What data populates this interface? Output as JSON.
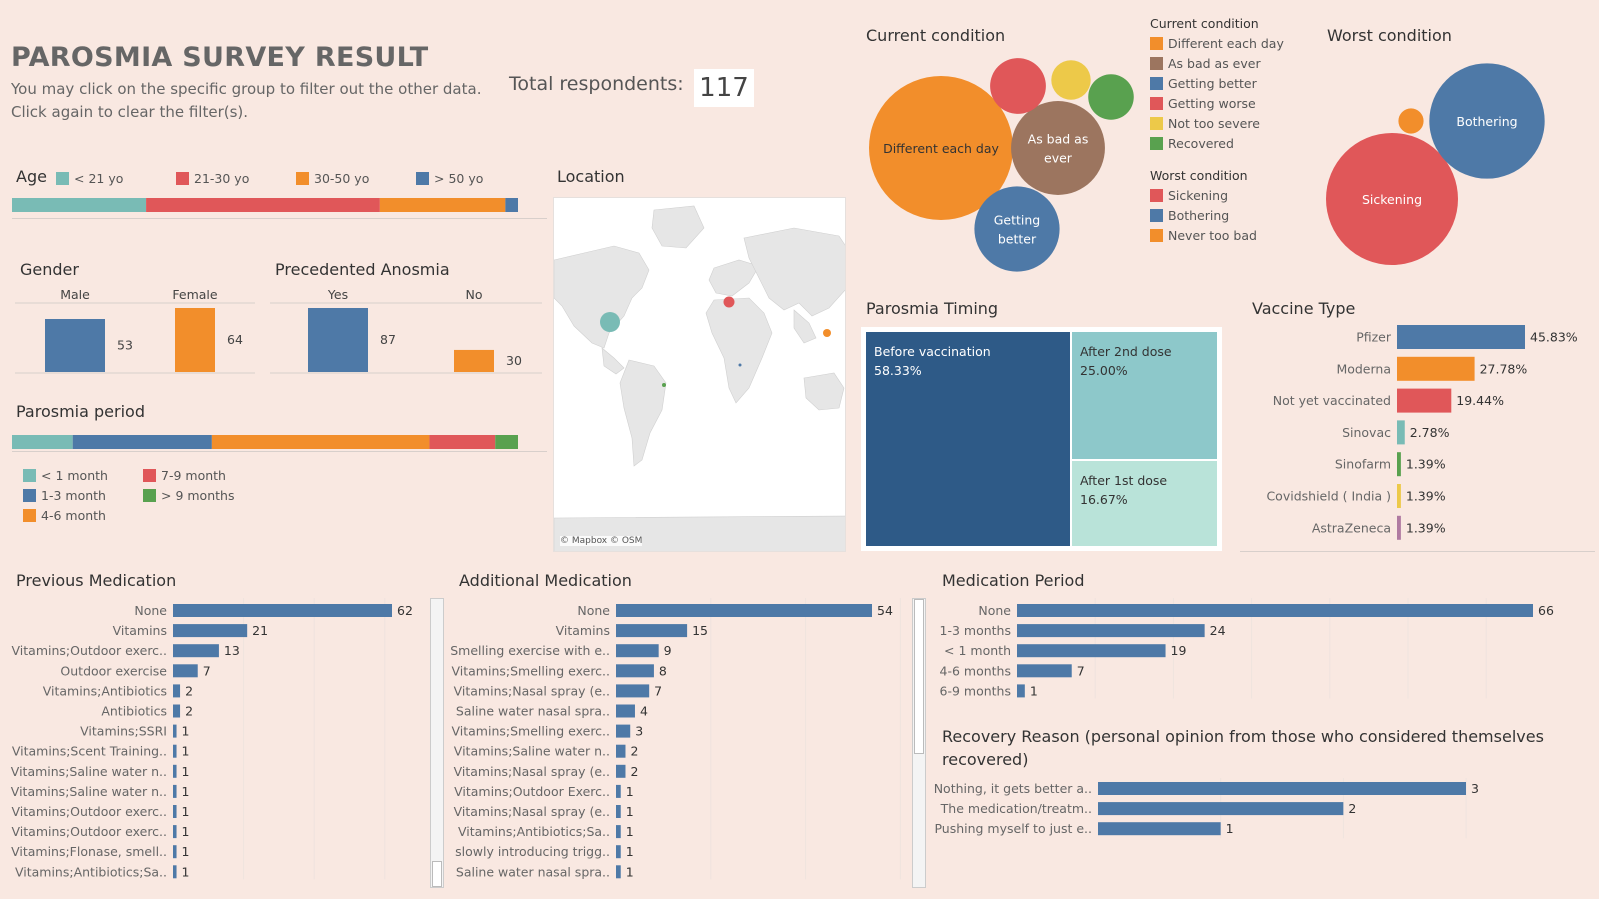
{
  "header": {
    "title": "PAROSMIA SURVEY RESULT",
    "subtitle1": "You may click on the specific group to filter out the other data.",
    "subtitle2": "Click again to clear the filter(s).",
    "total_label": "Total respondents:",
    "total_value": "117"
  },
  "colors": {
    "teal": "#79bbb5",
    "red": "#e05759",
    "orange": "#f28e2b",
    "blue": "#4e79a7",
    "yellow": "#edc949",
    "green": "#59a14f",
    "brown": "#9c755f",
    "purple": "#b07aa1",
    "darkblue": "#2e5a87",
    "lightteal": "#8dc8ca",
    "palegreen": "#b9e3d9"
  },
  "chart_data": [
    {
      "id": "age",
      "type": "bar",
      "title": "Age",
      "stacked": true,
      "categories": [
        "< 21 yo",
        "21-30 yo",
        "30-50 yo",
        "> 50 yo"
      ],
      "values": [
        26.5,
        46.2,
        24.8,
        2.5
      ],
      "colors": [
        "#79bbb5",
        "#e05759",
        "#f28e2b",
        "#4e79a7"
      ]
    },
    {
      "id": "gender",
      "type": "bar",
      "title": "Gender",
      "categories": [
        "Male",
        "Female"
      ],
      "values": [
        53,
        64
      ],
      "colors": [
        "#4e79a7",
        "#f28e2b"
      ]
    },
    {
      "id": "anosmia",
      "type": "bar",
      "title": "Precedented Anosmia",
      "categories": [
        "Yes",
        "No"
      ],
      "values": [
        87,
        30
      ],
      "colors": [
        "#4e79a7",
        "#f28e2b"
      ]
    },
    {
      "id": "period",
      "type": "bar",
      "title": "Parosmia period",
      "stacked": true,
      "categories": [
        "< 1 month",
        "1-3 month",
        "4-6 month",
        "7-9 month",
        "> 9 months"
      ],
      "values": [
        12,
        27.5,
        43,
        13,
        4.5
      ],
      "colors": [
        "#79bbb5",
        "#4e79a7",
        "#f28e2b",
        "#e05759",
        "#59a14f"
      ]
    },
    {
      "id": "current",
      "type": "bubble",
      "title": "Current condition",
      "legend_title": "Current condition",
      "categories": [
        "Different each day",
        "As bad as ever",
        "Getting better",
        "Getting worse",
        "Not too severe",
        "Recovered"
      ],
      "label_lines": [
        [
          "Different each day"
        ],
        [
          "As bad as",
          "ever"
        ],
        [
          "Getting",
          "better"
        ],
        [],
        [],
        []
      ],
      "values": [
        40,
        17,
        14,
        6,
        3,
        4
      ],
      "colors": [
        "#f28e2b",
        "#9c755f",
        "#4e79a7",
        "#e05759",
        "#edc949",
        "#59a14f"
      ]
    },
    {
      "id": "worst",
      "type": "bubble",
      "title": "Worst condition",
      "legend_title": "Worst condition",
      "categories": [
        "Sickening",
        "Bothering",
        "Never too bad"
      ],
      "values": [
        55,
        42,
        2
      ],
      "colors": [
        "#e05759",
        "#4e79a7",
        "#f28e2b"
      ]
    },
    {
      "id": "timing",
      "type": "treemap",
      "title": "Parosmia Timing",
      "categories": [
        "Before vaccination",
        "After 2nd dose",
        "After 1st dose"
      ],
      "values": [
        "58.33%",
        "25.00%",
        "16.67%"
      ],
      "colors": [
        "#2e5a87",
        "#8dc8ca",
        "#b9e3d9"
      ]
    },
    {
      "id": "vaccine",
      "type": "bar",
      "orientation": "horizontal",
      "title": "Vaccine Type",
      "categories": [
        "Pfizer",
        "Moderna",
        "Not yet vaccinated",
        "Sinovac",
        "Sinofarm",
        "Covidshield ( India )",
        "AstraZeneca"
      ],
      "values": [
        45.83,
        27.78,
        19.44,
        2.78,
        1.39,
        1.39,
        1.39
      ],
      "labels": [
        "45.83%",
        "27.78%",
        "19.44%",
        "2.78%",
        "1.39%",
        "1.39%",
        "1.39%"
      ],
      "colors": [
        "#4e79a7",
        "#f28e2b",
        "#e05759",
        "#79bbb5",
        "#59a14f",
        "#edc949",
        "#b07aa1"
      ]
    },
    {
      "id": "prevmed",
      "type": "bar",
      "orientation": "horizontal",
      "title": "Previous Medication",
      "categories": [
        "None",
        "Vitamins",
        "Vitamins;Outdoor exerc..",
        "Outdoor exercise",
        "Vitamins;Antibiotics",
        "Antibiotics",
        "Vitamins;SSRI",
        "Vitamins;Scent Training..",
        "Vitamins;Saline water n..",
        "Vitamins;Saline water n..",
        "Vitamins;Outdoor exerc..",
        "Vitamins;Outdoor exerc..",
        "Vitamins;Flonase, smell..",
        "Vitamins;Antibiotics;Sa.."
      ],
      "values": [
        62,
        21,
        13,
        7,
        2,
        2,
        1,
        1,
        1,
        1,
        1,
        1,
        1,
        1
      ]
    },
    {
      "id": "addmed",
      "type": "bar",
      "orientation": "horizontal",
      "title": "Additional Medication",
      "categories": [
        "None",
        "Vitamins",
        "Smelling exercise with e..",
        "Vitamins;Smelling exerc..",
        "Vitamins;Nasal spray (e..",
        "Saline water nasal spra..",
        "Vitamins;Smelling exerc..",
        "Vitamins;Saline water n..",
        "Vitamins;Nasal spray (e..",
        "Vitamins;Outdoor Exerc..",
        "Vitamins;Nasal spray (e..",
        "Vitamins;Antibiotics;Sa..",
        "slowly introducing trigg..",
        "Saline water nasal spra.."
      ],
      "values": [
        54,
        15,
        9,
        8,
        7,
        4,
        3,
        2,
        2,
        1,
        1,
        1,
        1,
        1
      ]
    },
    {
      "id": "medperiod",
      "type": "bar",
      "orientation": "horizontal",
      "title": "Medication Period",
      "categories": [
        "None",
        "1-3 months",
        "< 1 month",
        "4-6 months",
        "6-9 months"
      ],
      "values": [
        66,
        24,
        19,
        7,
        1
      ]
    },
    {
      "id": "recovery",
      "type": "bar",
      "orientation": "horizontal",
      "title": "Recovery Reason (personal opinion from those who considered themselves recovered)",
      "title_lines": [
        "Recovery Reason (personal opinion from those who considered themselves",
        "recovered)"
      ],
      "categories": [
        "Nothing, it gets better a..",
        "The medication/treatm..",
        "Pushing myself to just e.."
      ],
      "values": [
        3,
        2,
        1
      ]
    }
  ],
  "location": {
    "title": "Location",
    "attribution": "© Mapbox © OSM",
    "points": [
      {
        "name": "North America",
        "size": "large",
        "color": "#79bbb5"
      },
      {
        "name": "Europe",
        "size": "medium",
        "color": "#e05759"
      },
      {
        "name": "East Asia",
        "size": "small",
        "color": "#f28e2b"
      },
      {
        "name": "South America",
        "size": "tiny",
        "color": "#59a14f"
      },
      {
        "name": "Africa",
        "size": "tiny",
        "color": "#4e79a7"
      }
    ]
  }
}
